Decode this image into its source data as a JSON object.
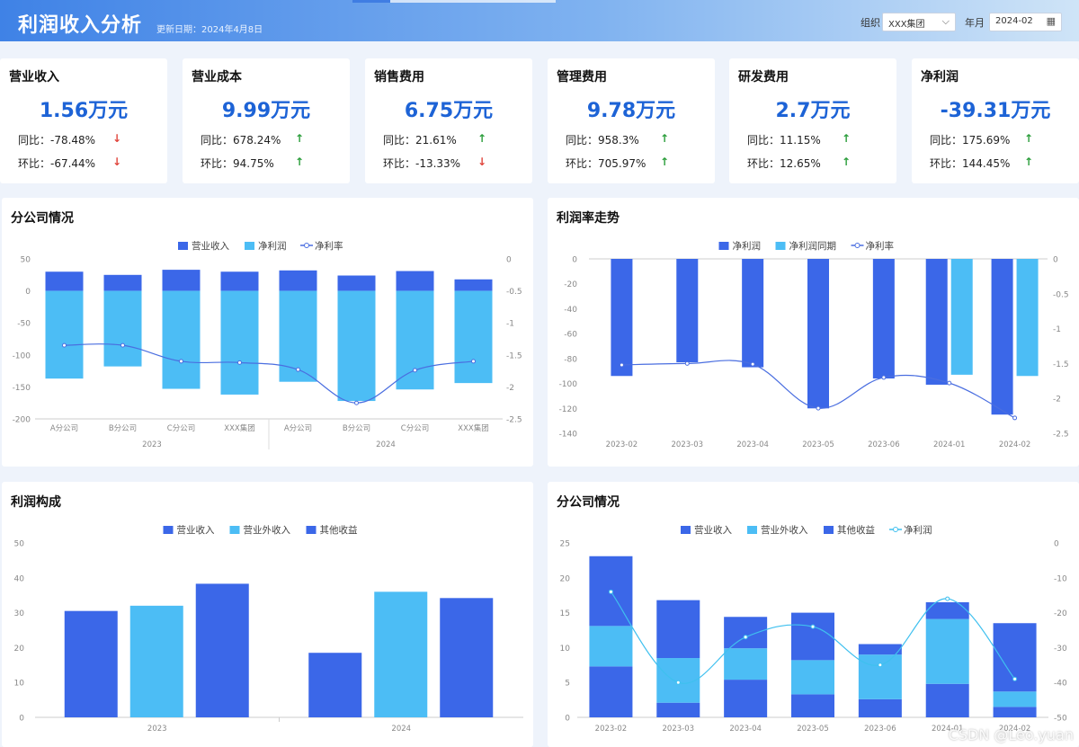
{
  "header": {
    "title": "利润收入分析",
    "updated": "更新日期：2024年4月8日",
    "org_label": "组织",
    "org_value": "XXX集团",
    "month_label": "年月",
    "month_value": "2024-02"
  },
  "kpis": [
    {
      "title": "营业收入",
      "value": "1.56万元",
      "yoy": "同比：-78.48%",
      "mom": "环比：-67.44%",
      "yoy_dir": "down",
      "mom_dir": "down"
    },
    {
      "title": "营业成本",
      "value": "9.99万元",
      "yoy": "同比：678.24%",
      "mom": "环比：94.75%",
      "yoy_dir": "up",
      "mom_dir": "up"
    },
    {
      "title": "销售费用",
      "value": "6.75万元",
      "yoy": "同比：21.61%",
      "mom": "环比：-13.33%",
      "yoy_dir": "up",
      "mom_dir": "down"
    },
    {
      "title": "管理费用",
      "value": "9.78万元",
      "yoy": "同比：958.3%",
      "mom": "环比：705.97%",
      "yoy_dir": "up",
      "mom_dir": "up"
    },
    {
      "title": "研发费用",
      "value": "2.7万元",
      "yoy": "同比：11.15%",
      "mom": "环比：12.65%",
      "yoy_dir": "up",
      "mom_dir": "up"
    },
    {
      "title": "净利润",
      "value": "-39.31万元",
      "yoy": "同比：175.69%",
      "mom": "环比：144.45%",
      "yoy_dir": "up",
      "mom_dir": "up"
    }
  ],
  "panels": {
    "p1": "分公司情况",
    "p2": "利润率走势",
    "p3": "利润构成",
    "p4": "分公司情况"
  },
  "watermark": "CSDN @Leo.yuan",
  "colors": {
    "blue": "#3b67e8",
    "light": "#4cbdf5",
    "line": "#4a6ee0",
    "line2": "#3fc0ef"
  },
  "chart_data": [
    {
      "type": "bar",
      "categories": [
        "A分公司",
        "B分公司",
        "C分公司",
        "XXX集团",
        "A分公司",
        "B分公司",
        "C分公司",
        "XXX集团"
      ],
      "groups": [
        {
          "label": "2023",
          "span": 4
        },
        {
          "label": "2024",
          "span": 4
        }
      ],
      "series": [
        {
          "name": "营业收入",
          "values": [
            30,
            25,
            33,
            30,
            32,
            24,
            31,
            18
          ]
        },
        {
          "name": "净利润",
          "values": [
            -137,
            -118,
            -153,
            -162,
            -142,
            -172,
            -154,
            -144
          ]
        },
        {
          "name": "净利率",
          "axis": "right",
          "type": "line",
          "values": [
            -1.35,
            -1.35,
            -1.6,
            -1.62,
            -1.73,
            -2.25,
            -1.74,
            -1.6
          ]
        }
      ],
      "yticks": [
        "50",
        "0",
        "-50",
        "-100",
        "-150",
        "-200"
      ],
      "ylim": [
        -200,
        50
      ],
      "y2ticks": [
        "0",
        "-0.5",
        "-1",
        "-1.5",
        "-2",
        "-2.5"
      ],
      "y2lim": [
        -2.5,
        0
      ]
    },
    {
      "type": "bar",
      "categories": [
        "2023-02",
        "2023-03",
        "2023-04",
        "2023-05",
        "2023-06",
        "2024-01",
        "2024-02"
      ],
      "series": [
        {
          "name": "净利润",
          "values": [
            -94,
            -83,
            -87,
            -120,
            -96,
            -101,
            -125
          ]
        },
        {
          "name": "净利润同期",
          "values": [
            null,
            null,
            null,
            null,
            null,
            -93,
            -94
          ]
        },
        {
          "name": "净利率",
          "axis": "right",
          "type": "line",
          "values": [
            -1.52,
            -1.5,
            -1.51,
            -2.14,
            -1.7,
            -1.78,
            -2.28
          ]
        }
      ],
      "yticks": [
        "0",
        "-20",
        "-40",
        "-60",
        "-80",
        "-100",
        "-120",
        "-140"
      ],
      "ylim": [
        -140,
        0
      ],
      "y2ticks": [
        "0",
        "-0.5",
        "-1",
        "-1.5",
        "-2",
        "-2.5"
      ],
      "y2lim": [
        -2.5,
        0
      ]
    },
    {
      "type": "bar",
      "groups": [
        {
          "label": "2023",
          "values": [
            30.5,
            32,
            38.3
          ]
        },
        {
          "label": "2024",
          "values": [
            18.5,
            36,
            34.2
          ]
        }
      ],
      "series": [
        {
          "name": "营业收入"
        },
        {
          "name": "营业外收入"
        },
        {
          "name": "其他收益"
        }
      ],
      "yticks": [
        "50",
        "40",
        "30",
        "20",
        "10",
        "0"
      ],
      "ylim": [
        0,
        50
      ]
    },
    {
      "type": "bar",
      "stacked": true,
      "categories": [
        "2023-02",
        "2023-03",
        "2023-04",
        "2023-05",
        "2023-06",
        "2024-01",
        "2024-02"
      ],
      "series": [
        {
          "name": "营业收入",
          "values": [
            7.3,
            2.1,
            5.4,
            3.3,
            2.6,
            4.8,
            1.5
          ]
        },
        {
          "name": "营业外收入",
          "values": [
            5.8,
            6.4,
            4.5,
            4.9,
            6.4,
            9.3,
            2.2
          ]
        },
        {
          "name": "其他收益",
          "values": [
            10,
            8.3,
            4.5,
            6.8,
            1.5,
            2.4,
            9.8
          ]
        },
        {
          "name": "净利润",
          "axis": "right",
          "type": "line",
          "values": [
            -14,
            -40,
            -27,
            -24,
            -35,
            -16,
            -39
          ]
        }
      ],
      "yticks": [
        "25",
        "20",
        "15",
        "10",
        "5",
        "0"
      ],
      "ylim": [
        0,
        25
      ],
      "y2ticks": [
        "0",
        "-10",
        "-20",
        "-30",
        "-40",
        "-50"
      ],
      "y2lim": [
        -50,
        0
      ]
    }
  ]
}
